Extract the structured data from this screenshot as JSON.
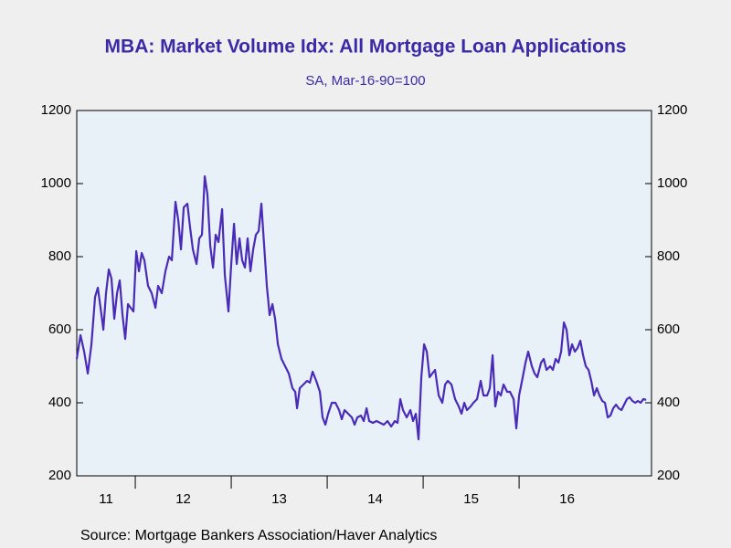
{
  "chart_data": {
    "type": "line",
    "title": "MBA: Market Volume Idx: All Mortgage Loan Applications",
    "subtitle": "SA, Mar-16-90=100",
    "source": "Source:  Mortgage Bankers Association/Haver Analytics",
    "xlim": [
      2011.39,
      2017.38
    ],
    "xticks": [
      {
        "value": 2011,
        "label": "11"
      },
      {
        "value": 2012,
        "label": "12"
      },
      {
        "value": 2013,
        "label": "13"
      },
      {
        "value": 2014,
        "label": "14"
      },
      {
        "value": 2015,
        "label": "15"
      },
      {
        "value": 2016,
        "label": "16"
      }
    ],
    "ylim": [
      200,
      1200
    ],
    "yticks": [
      200,
      400,
      600,
      800,
      1000,
      1200
    ],
    "y2lim": [
      200,
      1200
    ],
    "y2ticks": [
      200,
      400,
      600,
      800,
      1000,
      1200
    ],
    "x": [
      2011.39,
      2011.429,
      2011.467,
      2011.505,
      2011.543,
      2011.581,
      2011.61,
      2011.648,
      2011.667,
      2011.695,
      2011.724,
      2011.752,
      2011.781,
      2011.81,
      2011.838,
      2011.867,
      2011.895,
      2011.924,
      2011.952,
      2011.981,
      2012.01,
      2012.038,
      2012.067,
      2012.095,
      2012.133,
      2012.171,
      2012.21,
      2012.238,
      2012.276,
      2012.314,
      2012.352,
      2012.381,
      2012.419,
      2012.448,
      2012.476,
      2012.505,
      2012.543,
      2012.571,
      2012.6,
      2012.638,
      2012.667,
      2012.695,
      2012.724,
      2012.752,
      2012.781,
      2012.81,
      2012.838,
      2012.867,
      2012.905,
      2012.933,
      2012.971,
      2013.0,
      2013.029,
      2013.057,
      2013.086,
      2013.114,
      2013.143,
      2013.171,
      2013.2,
      2013.229,
      2013.257,
      2013.286,
      2013.314,
      2013.343,
      2013.371,
      2013.4,
      2013.429,
      2013.457,
      2013.486,
      2013.524,
      2013.562,
      2013.6,
      2013.638,
      2013.667,
      2013.686,
      2013.714,
      2013.752,
      2013.79,
      2013.819,
      2013.848,
      2013.886,
      2013.924,
      2013.952,
      2013.981,
      2014.01,
      2014.048,
      2014.086,
      2014.124,
      2014.152,
      2014.181,
      2014.219,
      2014.257,
      2014.286,
      2014.314,
      2014.352,
      2014.381,
      2014.41,
      2014.438,
      2014.476,
      2014.514,
      2014.552,
      2014.59,
      2014.629,
      2014.667,
      2014.705,
      2014.733,
      2014.762,
      2014.79,
      2014.829,
      2014.867,
      2014.895,
      2014.924,
      2014.952,
      2014.981,
      2015.01,
      2015.038,
      2015.067,
      2015.095,
      2015.124,
      2015.162,
      2015.2,
      2015.229,
      2015.257,
      2015.295,
      2015.333,
      2015.371,
      2015.4,
      2015.429,
      2015.457,
      2015.495,
      2015.524,
      2015.562,
      2015.6,
      2015.629,
      2015.667,
      2015.695,
      2015.724,
      2015.752,
      2015.781,
      2015.81,
      2015.838,
      2015.876,
      2015.905,
      2015.943,
      2015.971,
      2016.0,
      2016.038,
      2016.067,
      2016.095,
      2016.133,
      2016.162,
      2016.19,
      2016.229,
      2016.257,
      2016.286,
      2016.324,
      2016.352,
      2016.381,
      2016.41,
      2016.438,
      2016.467,
      2016.495,
      2016.524,
      2016.552,
      2016.581,
      2016.61,
      2016.638,
      2016.667,
      2016.695,
      2016.724,
      2016.752,
      2016.781,
      2016.81,
      2016.838,
      2016.867,
      2016.895,
      2016.924,
      2016.952,
      2016.981,
      2017.01,
      2017.038,
      2017.067,
      2017.095,
      2017.124,
      2017.152,
      2017.181,
      2017.21,
      2017.238,
      2017.267,
      2017.295,
      2017.324
    ],
    "series": [
      {
        "name": "All Mortgage Loan Applications",
        "color": "#4a2bb8",
        "values": [
          520,
          585,
          540,
          480,
          560,
          690,
          715,
          640,
          600,
          700,
          765,
          740,
          630,
          700,
          735,
          640,
          575,
          670,
          660,
          650,
          815,
          760,
          810,
          790,
          720,
          700,
          660,
          720,
          700,
          760,
          800,
          790,
          950,
          900,
          820,
          935,
          945,
          880,
          820,
          780,
          850,
          860,
          1020,
          970,
          830,
          770,
          860,
          840,
          930,
          750,
          650,
          780,
          890,
          780,
          850,
          790,
          770,
          850,
          760,
          820,
          860,
          870,
          945,
          830,
          720,
          640,
          670,
          630,
          560,
          520,
          500,
          480,
          440,
          430,
          385,
          440,
          450,
          460,
          455,
          485,
          460,
          430,
          360,
          340,
          370,
          400,
          400,
          380,
          355,
          380,
          370,
          360,
          340,
          360,
          365,
          350,
          385,
          350,
          345,
          350,
          345,
          340,
          350,
          335,
          350,
          345,
          410,
          380,
          360,
          380,
          350,
          370,
          300,
          470,
          560,
          540,
          470,
          480,
          490,
          420,
          400,
          450,
          460,
          450,
          410,
          390,
          370,
          400,
          380,
          390,
          400,
          410,
          460,
          420,
          420,
          440,
          530,
          390,
          430,
          420,
          450,
          430,
          430,
          410,
          330,
          420,
          470,
          510,
          540,
          500,
          480,
          470,
          510,
          520,
          490,
          500,
          490,
          520,
          510,
          540,
          620,
          600,
          530,
          560,
          540,
          550,
          570,
          530,
          500,
          490,
          460,
          420,
          440,
          420,
          405,
          400,
          360,
          365,
          385,
          395,
          385,
          380,
          395,
          410,
          415,
          405,
          400,
          405,
          400,
          410,
          408
        ]
      }
    ]
  }
}
